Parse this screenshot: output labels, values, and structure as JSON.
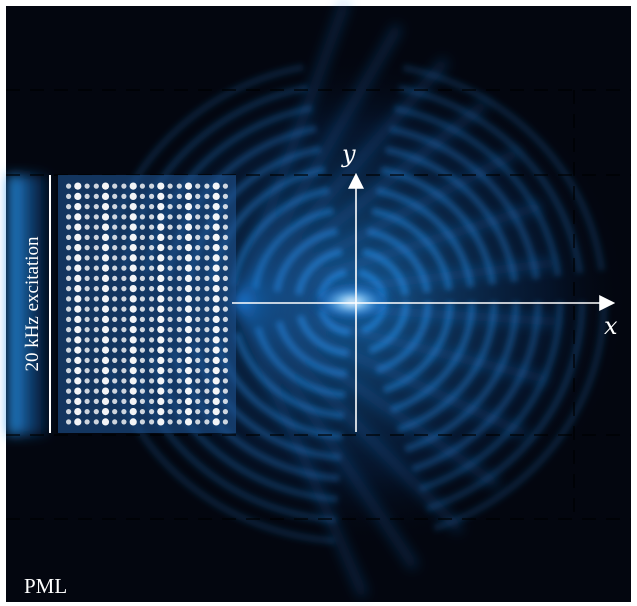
{
  "figure": {
    "x_axis_label": "x",
    "y_axis_label": "y",
    "excitation_label": "20 kHz excitation",
    "pml_label": "PML"
  },
  "colors": {
    "background": "#03060f",
    "field_glow": "#1e8fff",
    "field_core": "#ffffff",
    "axis": "#ffffff",
    "boundary_dash": "#000000",
    "hole_fill": "#ffffff"
  },
  "metamaterial": {
    "hole_columns": 18,
    "hole_rows": 24
  }
}
